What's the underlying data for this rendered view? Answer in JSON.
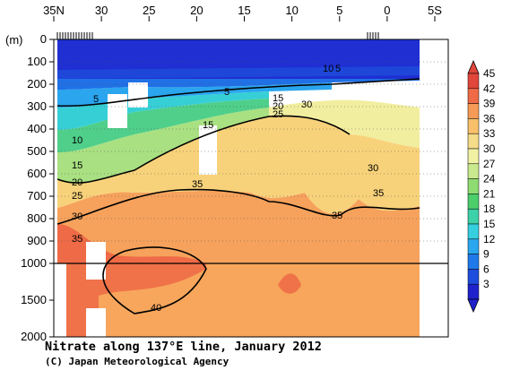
{
  "chart_data": {
    "type": "heatmap",
    "title": "Nitrate along 137°E line, January 2012",
    "credit": "(C) Japan Meteorological Agency",
    "x_ticks": [
      "35N",
      "30",
      "25",
      "20",
      "15",
      "10",
      "5",
      "0",
      "5S"
    ],
    "y_unit": "(m)",
    "y_ticks_upper": [
      "0",
      "100",
      "200",
      "300",
      "400",
      "500",
      "600",
      "700",
      "800",
      "900",
      "1000"
    ],
    "y_ticks_lower": [
      "1500",
      "2000"
    ],
    "colorbar": {
      "levels": [
        "45",
        "42",
        "39",
        "36",
        "33",
        "30",
        "27",
        "24",
        "21",
        "18",
        "15",
        "12",
        "9",
        "6",
        "3"
      ],
      "colors": [
        "#e0463a",
        "#ef6a46",
        "#f59b57",
        "#f8c06a",
        "#f5dc8a",
        "#f1f1a4",
        "#c9ea8e",
        "#8fdc72",
        "#4cce6a",
        "#3cd1a8",
        "#35cfe0",
        "#2aa7ee",
        "#2079e8",
        "#1e4ddd",
        "#1f22cc"
      ]
    },
    "contour_labels": [
      "5",
      "10",
      "15",
      "20",
      "25",
      "30",
      "35",
      "40",
      "5",
      "10",
      "5",
      "15",
      "20",
      "25",
      "30",
      "35",
      "30",
      "35",
      "35",
      "15"
    ],
    "axis_break_depth_m": 1000,
    "lat_range": [
      35,
      -5
    ],
    "depth_range_m": [
      0,
      2000
    ]
  }
}
